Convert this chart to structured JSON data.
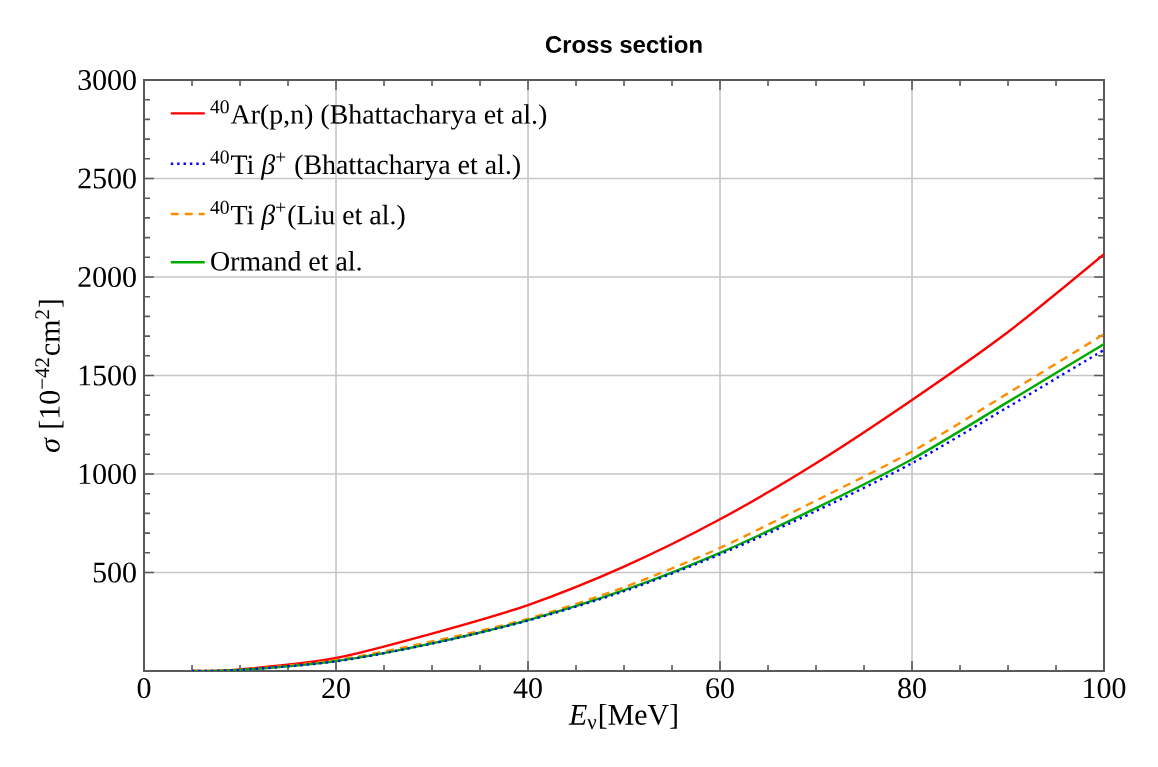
{
  "chart_data": {
    "type": "line",
    "title": "Cross section",
    "xlabel": "*E*$_{ν}$[MeV]",
    "ylabel": "*σ* [10$^{−42}$cm$^{2}$]",
    "x": [
      5,
      10,
      20,
      30,
      40,
      50,
      60,
      70,
      80,
      90,
      100
    ],
    "series": [
      {
        "name": "$^{40}$Ar(p,n) (Bhattacharya et al.)",
        "color": "#ff0000",
        "line_style": "solid",
        "values": [
          0,
          8,
          66,
          190,
          335,
          530,
          770,
          1055,
          1376,
          1721,
          2116
        ]
      },
      {
        "name": "$^{40}$Ti *β*$^{+}$ (Bhattacharya et al.)",
        "color": "#0000ff",
        "line_style": "dotted",
        "values": [
          0,
          5,
          49,
          139,
          256,
          405,
          592,
          812,
          1055,
          1340,
          1630
        ]
      },
      {
        "name": "$^{40}$Ti *β*$^{+}$(Liu et al.)",
        "color": "#ff8c00",
        "line_style": "dashed",
        "values": [
          0,
          6,
          55,
          150,
          265,
          425,
          625,
          865,
          1114,
          1410,
          1710
        ]
      },
      {
        "name": "Ormand et al.",
        "color": "#00aa00",
        "line_style": "solid",
        "values": [
          0,
          5,
          50,
          140,
          258,
          410,
          600,
          827,
          1075,
          1366,
          1660
        ]
      }
    ],
    "xlim": [
      0,
      100
    ],
    "ylim": [
      0,
      3000
    ],
    "xticks": [
      0,
      20,
      40,
      60,
      80,
      100
    ],
    "yticks": [
      500,
      1000,
      1500,
      2000,
      2500,
      3000
    ],
    "grid": true,
    "legend": "top left",
    "marker": "none"
  }
}
